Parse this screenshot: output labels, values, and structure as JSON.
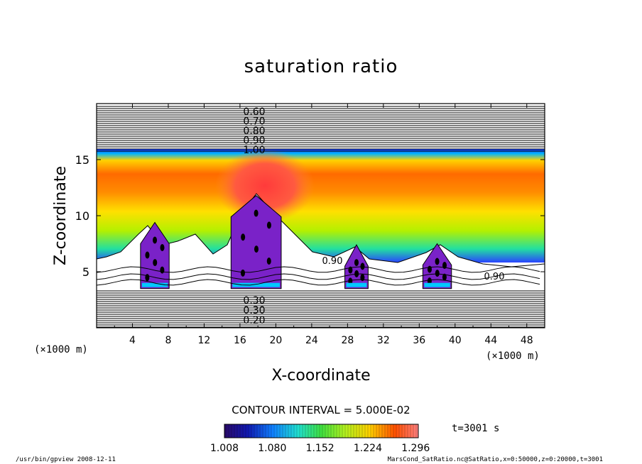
{
  "chart_data": {
    "type": "heatmap",
    "title": "saturation ratio",
    "xlabel": "X-coordinate",
    "ylabel": "Z-coordinate",
    "x_unit_left": "(×1000 m)",
    "x_unit_right": "(×1000 m)",
    "xlim": [
      0,
      50
    ],
    "ylim": [
      0,
      20
    ],
    "x_ticks": [
      4,
      8,
      12,
      16,
      20,
      24,
      28,
      32,
      36,
      40,
      44,
      48
    ],
    "y_ticks": [
      5,
      10,
      15
    ],
    "contour_labels_upper": [
      "0.60",
      "0.70",
      "0.80",
      "0.90",
      "1.00"
    ],
    "contour_labels_lower": [
      "0.30",
      "0.30",
      "0.20"
    ],
    "contour_labels_other": [
      "0.90",
      "0.90"
    ],
    "contour_interval": "CONTOUR INTERVAL = 5.000E-02",
    "colorbar": {
      "ticks": [
        "1.008",
        "1.080",
        "1.152",
        "1.224",
        "1.296"
      ],
      "range": [
        1.008,
        1.3
      ]
    },
    "time_label": "t=3001 s",
    "footer_left": "/usr/bin/gpview   2008-12-11",
    "footer_right": "MarsCond_SatRatio.nc@SatRatio,x=0:50000,z=0:20000,t=3001"
  }
}
